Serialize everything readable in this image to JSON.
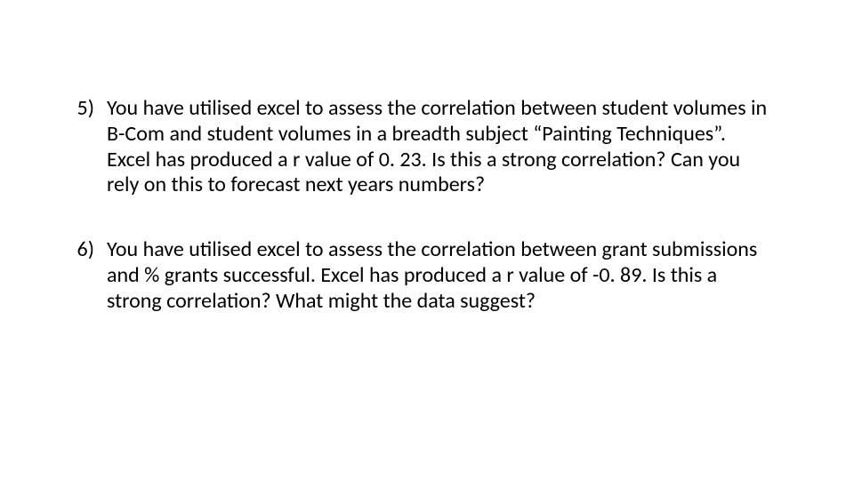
{
  "font": {
    "family": "Calibri",
    "size_pt": 24,
    "weight": "normal",
    "color": "#000000"
  },
  "background_color": "#ffffff",
  "questions": [
    {
      "number": "5)",
      "text": "You have utilised excel to assess the correlation between student volumes in B-Com and student volumes in a breadth subject “Painting Techniques”.  Excel has produced a r value of 0. 23. Is this a strong correlation? Can you rely on this to forecast next years numbers?"
    },
    {
      "number": "6)",
      "text": "You have utilised excel to assess the correlation between grant submissions and % grants successful. Excel has produced a r value of -0. 89. Is this a strong correlation? What might the data suggest?"
    }
  ]
}
